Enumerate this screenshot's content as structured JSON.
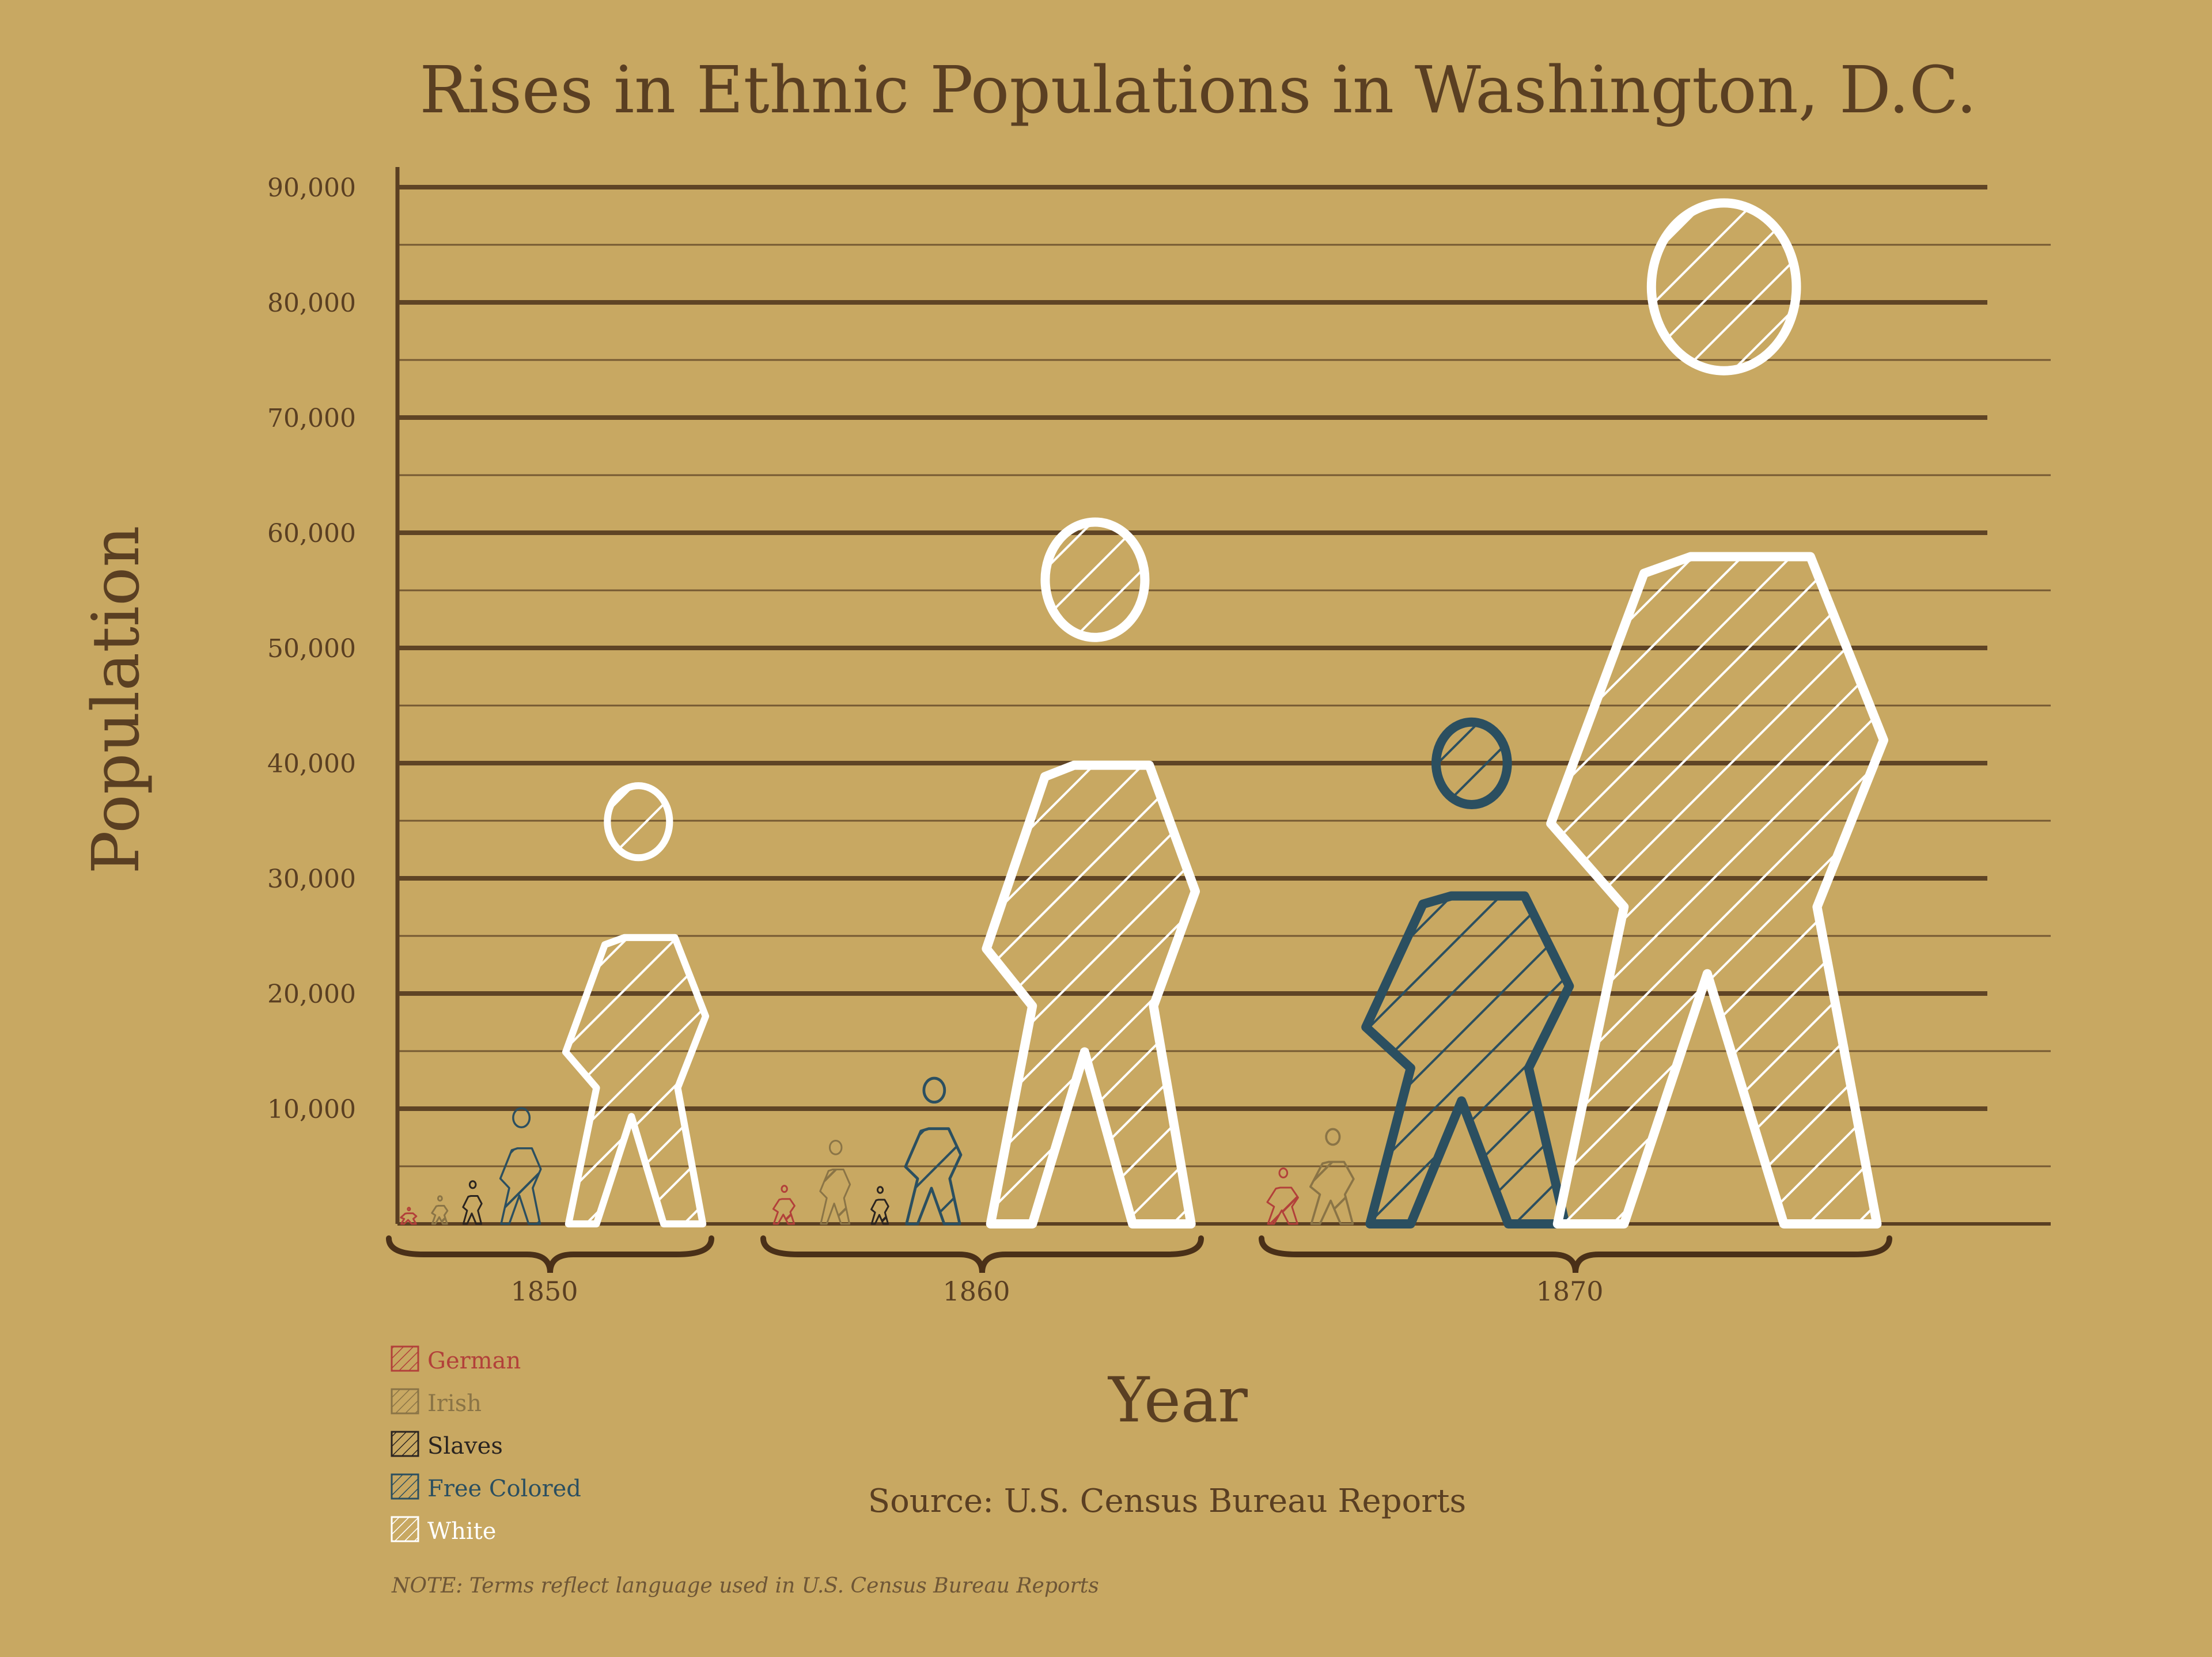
{
  "chart_data": {
    "type": "bar",
    "title": "Rises in Ethnic Populations in Washington, D.C.",
    "xlabel": "Year",
    "ylabel": "Population",
    "ylim": [
      0,
      90000
    ],
    "yticks": [
      "10,000",
      "20,000",
      "30,000",
      "40,000",
      "50,000",
      "60,000",
      "70,000",
      "80,000",
      "90,000"
    ],
    "ytick_values": [
      10000,
      20000,
      30000,
      40000,
      50000,
      60000,
      70000,
      80000,
      90000
    ],
    "categories": [
      "1850",
      "1860",
      "1870"
    ],
    "series": [
      {
        "name": "German",
        "values": [
          1400,
          3300,
          4800
        ]
      },
      {
        "name": "Irish",
        "values": [
          2400,
          7200,
          8200
        ]
      },
      {
        "name": "Slaves",
        "values": [
          3700,
          3200,
          0
        ]
      },
      {
        "name": "Free Colored",
        "values": [
          10000,
          12600,
          43400
        ]
      },
      {
        "name": "White",
        "values": [
          37900,
          60700,
          88300
        ]
      }
    ],
    "legend_position": "bottom-left",
    "grid": true,
    "source": "Source: U.S. Census Bureau Reports",
    "note": "NOTE: Terms reflect language used in U.S. Census Bureau Reports"
  },
  "colors": {
    "background": "#c8a862",
    "ink": "#5a3f22",
    "German": "#b2403a",
    "Irish": "#8a7446",
    "Slaves": "#2a2420",
    "Free Colored": "#2b4f60",
    "White": "#ffffff"
  }
}
